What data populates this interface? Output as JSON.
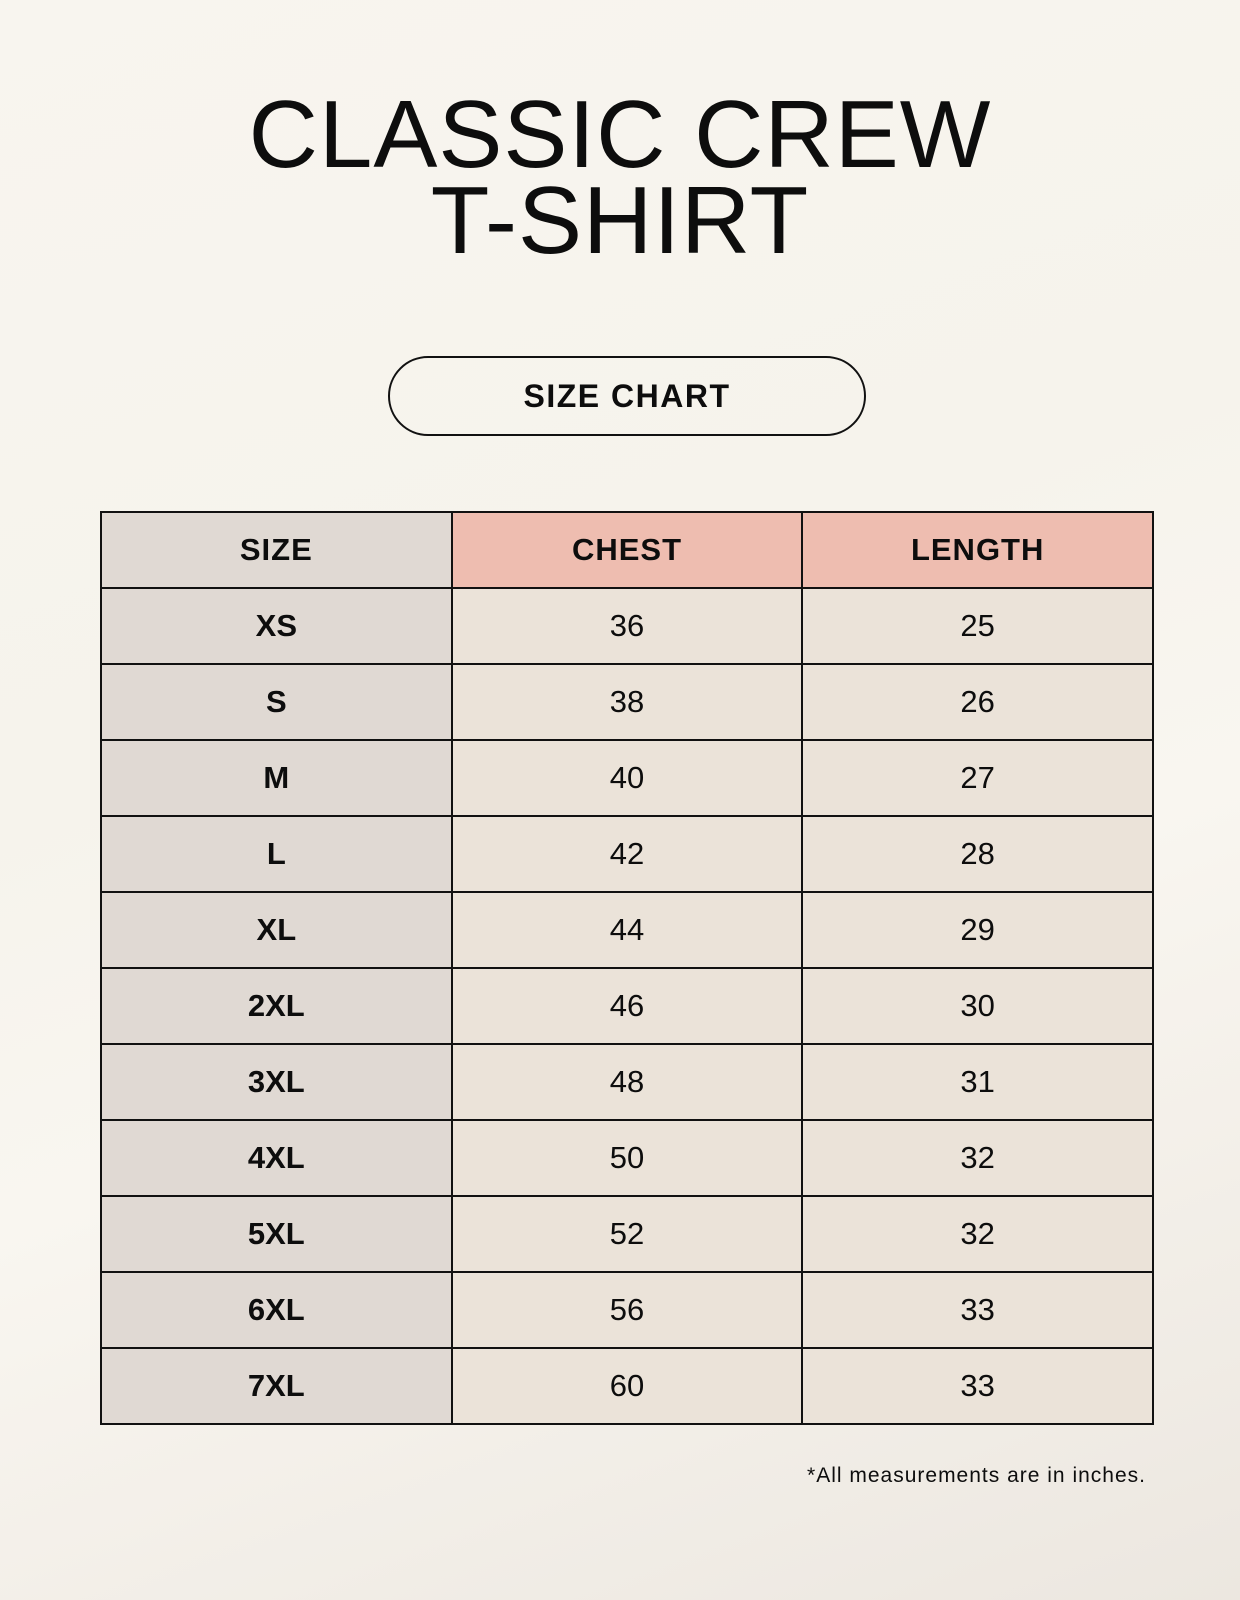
{
  "title_lines": [
    "CLASSIC CREW",
    "T-SHIRT"
  ],
  "badge": "SIZE CHART",
  "table": {
    "headers": [
      "SIZE",
      "CHEST",
      "LENGTH"
    ],
    "rows": [
      [
        "XS",
        "36",
        "25"
      ],
      [
        "S",
        "38",
        "26"
      ],
      [
        "M",
        "40",
        "27"
      ],
      [
        "L",
        "42",
        "28"
      ],
      [
        "XL",
        "44",
        "29"
      ],
      [
        "2XL",
        "46",
        "30"
      ],
      [
        "3XL",
        "48",
        "31"
      ],
      [
        "4XL",
        "50",
        "32"
      ],
      [
        "5XL",
        "52",
        "32"
      ],
      [
        "6XL",
        "56",
        "33"
      ],
      [
        "7XL",
        "60",
        "33"
      ]
    ]
  },
  "footnote": "*All measurements are in inches.",
  "colors": {
    "header_accent": "#eebdb0",
    "size_column": "#e0d9d3",
    "value_cells": "#ebe3d9"
  }
}
